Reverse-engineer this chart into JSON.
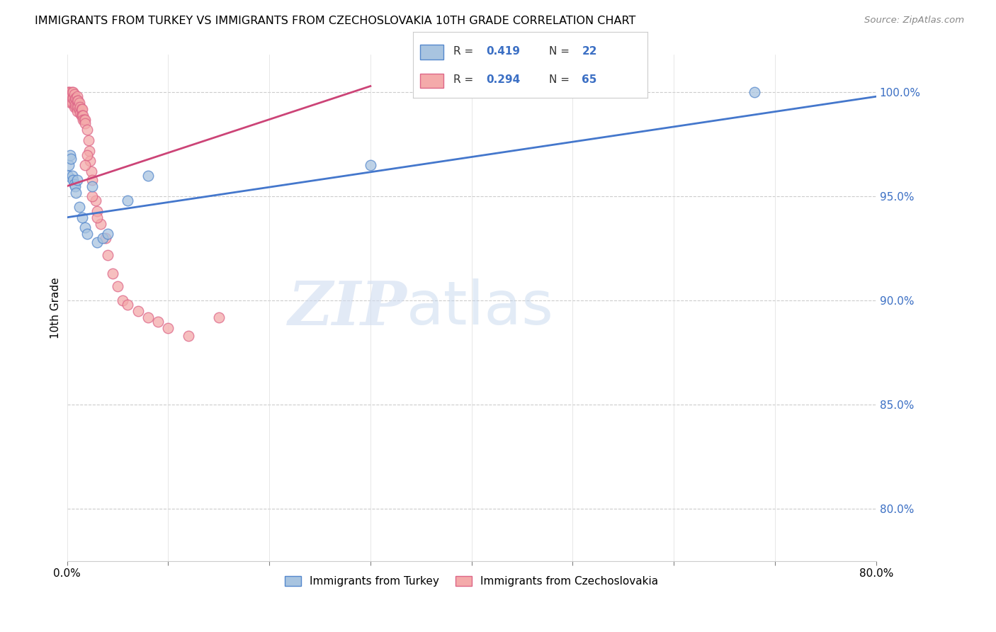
{
  "title": "IMMIGRANTS FROM TURKEY VS IMMIGRANTS FROM CZECHOSLOVAKIA 10TH GRADE CORRELATION CHART",
  "source": "Source: ZipAtlas.com",
  "ylabel": "10th Grade",
  "ytick_labels": [
    "100.0%",
    "95.0%",
    "90.0%",
    "85.0%",
    "80.0%"
  ],
  "ytick_values": [
    1.0,
    0.95,
    0.9,
    0.85,
    0.8
  ],
  "xlim": [
    0.0,
    0.8
  ],
  "ylim": [
    0.775,
    1.018
  ],
  "legend_blue_R": "0.419",
  "legend_blue_N": "22",
  "legend_pink_R": "0.294",
  "legend_pink_N": "65",
  "legend_label_blue": "Immigrants from Turkey",
  "legend_label_pink": "Immigrants from Czechoslovakia",
  "blue_color": "#A8C4E0",
  "pink_color": "#F4AAAA",
  "blue_edge_color": "#5588CC",
  "pink_edge_color": "#DD6688",
  "blue_line_color": "#4477CC",
  "pink_line_color": "#CC4477",
  "watermark_zip": "ZIP",
  "watermark_atlas": "atlas",
  "blue_scatter_x": [
    0.001,
    0.002,
    0.003,
    0.004,
    0.005,
    0.006,
    0.007,
    0.008,
    0.009,
    0.01,
    0.012,
    0.015,
    0.018,
    0.02,
    0.025,
    0.03,
    0.035,
    0.04,
    0.06,
    0.08,
    0.3,
    0.68
  ],
  "blue_scatter_y": [
    0.96,
    0.965,
    0.97,
    0.968,
    0.96,
    0.958,
    0.956,
    0.955,
    0.952,
    0.958,
    0.945,
    0.94,
    0.935,
    0.932,
    0.955,
    0.928,
    0.93,
    0.932,
    0.948,
    0.96,
    0.965,
    1.0
  ],
  "pink_scatter_x": [
    0.001,
    0.001,
    0.002,
    0.002,
    0.003,
    0.003,
    0.003,
    0.004,
    0.004,
    0.005,
    0.005,
    0.005,
    0.006,
    0.006,
    0.007,
    0.007,
    0.007,
    0.008,
    0.008,
    0.009,
    0.009,
    0.01,
    0.01,
    0.01,
    0.01,
    0.011,
    0.011,
    0.012,
    0.012,
    0.013,
    0.013,
    0.014,
    0.014,
    0.015,
    0.015,
    0.016,
    0.016,
    0.017,
    0.018,
    0.018,
    0.02,
    0.021,
    0.022,
    0.023,
    0.024,
    0.025,
    0.028,
    0.03,
    0.033,
    0.038,
    0.04,
    0.045,
    0.05,
    0.055,
    0.06,
    0.07,
    0.08,
    0.09,
    0.1,
    0.12,
    0.15,
    0.018,
    0.02,
    0.025,
    0.03
  ],
  "pink_scatter_y": [
    1.0,
    0.998,
    1.0,
    0.997,
    1.0,
    0.998,
    0.996,
    0.998,
    0.995,
    1.0,
    0.997,
    0.995,
    1.0,
    0.997,
    0.999,
    0.996,
    0.993,
    0.997,
    0.994,
    0.997,
    0.993,
    0.998,
    0.996,
    0.993,
    0.991,
    0.996,
    0.993,
    0.995,
    0.992,
    0.993,
    0.99,
    0.992,
    0.989,
    0.992,
    0.989,
    0.989,
    0.987,
    0.987,
    0.987,
    0.985,
    0.982,
    0.977,
    0.972,
    0.967,
    0.962,
    0.958,
    0.948,
    0.943,
    0.937,
    0.93,
    0.922,
    0.913,
    0.907,
    0.9,
    0.898,
    0.895,
    0.892,
    0.89,
    0.887,
    0.883,
    0.892,
    0.965,
    0.97,
    0.95,
    0.94
  ],
  "blue_trendline_x": [
    0.0,
    0.8
  ],
  "blue_trendline_y": [
    0.94,
    0.998
  ],
  "pink_trendline_x": [
    0.0,
    0.3
  ],
  "pink_trendline_y": [
    0.955,
    1.003
  ]
}
